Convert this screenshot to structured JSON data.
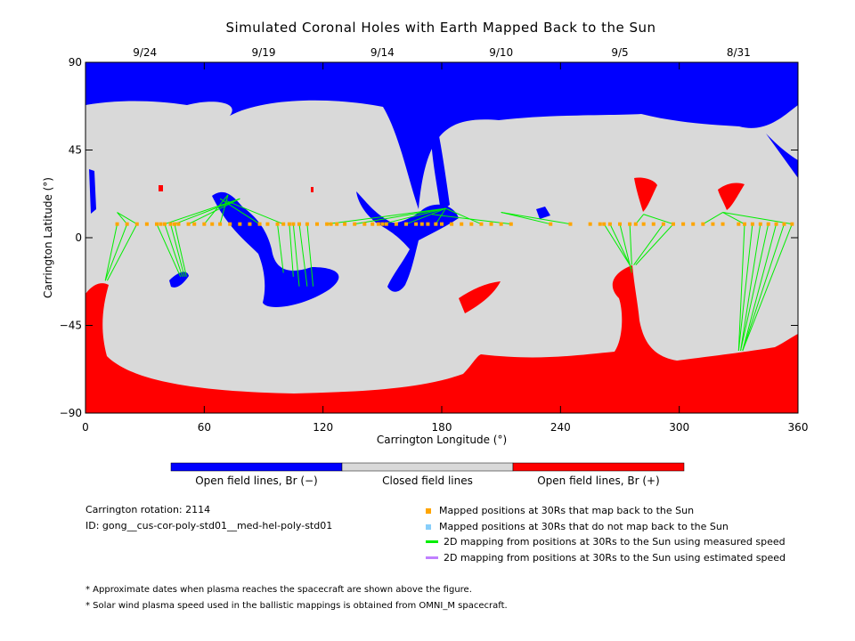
{
  "chart_data": {
    "type": "map",
    "title": "Simulated Coronal Holes with Earth Mapped Back to the Sun",
    "xlabel": "Carrington Longitude (°)",
    "ylabel": "Carrington Latitude (°)",
    "xlim": [
      0,
      360
    ],
    "ylim": [
      -90,
      90
    ],
    "x_ticks": [
      "0",
      "60",
      "120",
      "180",
      "240",
      "300",
      "360"
    ],
    "y_ticks": [
      "90",
      "45",
      "0",
      "−45",
      "−90"
    ],
    "top_dates": [
      {
        "label": "9/24",
        "lon": 30
      },
      {
        "label": "9/19",
        "lon": 90
      },
      {
        "label": "9/14",
        "lon": 150
      },
      {
        "label": "9/10",
        "lon": 210
      },
      {
        "label": "9/5",
        "lon": 270
      },
      {
        "label": "8/31",
        "lon": 330
      }
    ],
    "colorbar": [
      {
        "label": "Open field lines, Br (−)",
        "color": "#0000ff"
      },
      {
        "label": "Closed field lines",
        "color": "#d9d9d9"
      },
      {
        "label": "Open field lines, Br (+)",
        "color": "#ff0000"
      }
    ],
    "mapped_lat": 7,
    "mapped_lons": [
      16,
      21,
      26,
      31,
      36,
      38,
      40,
      43,
      45,
      47,
      52,
      55,
      60,
      64,
      68,
      73,
      78,
      83,
      88,
      92,
      97,
      100,
      103,
      105,
      108,
      112,
      117,
      122,
      124,
      127,
      131,
      136,
      141,
      145,
      148,
      150,
      152,
      157,
      162,
      167,
      170,
      173,
      177,
      180,
      185,
      190,
      195,
      200,
      205,
      210,
      215,
      235,
      245,
      255,
      260,
      262,
      265,
      270,
      275,
      278,
      282,
      287,
      292,
      297,
      302,
      307,
      312,
      317,
      322,
      330,
      333,
      337,
      341,
      345,
      349,
      353,
      357
    ],
    "green_lines": [
      [
        21,
        7,
        16,
        13
      ],
      [
        26,
        7,
        16,
        13
      ],
      [
        40,
        7,
        78,
        20
      ],
      [
        45,
        7,
        78,
        20
      ],
      [
        52,
        7,
        78,
        20
      ],
      [
        60,
        7,
        72,
        22
      ],
      [
        68,
        7,
        72,
        22
      ],
      [
        88,
        7,
        68,
        20
      ],
      [
        100,
        7,
        71,
        19
      ],
      [
        122,
        7,
        182,
        15
      ],
      [
        136,
        7,
        182,
        15
      ],
      [
        150,
        7,
        182,
        15
      ],
      [
        162,
        7,
        182,
        15
      ],
      [
        177,
        7,
        182,
        15
      ],
      [
        200,
        7,
        182,
        15
      ],
      [
        215,
        7,
        175,
        12
      ],
      [
        235,
        7,
        210,
        13
      ],
      [
        245,
        7,
        210,
        13
      ],
      [
        278,
        7,
        282,
        12
      ],
      [
        297,
        7,
        282,
        12
      ],
      [
        312,
        7,
        322,
        13
      ],
      [
        333,
        7,
        322,
        13
      ],
      [
        357,
        7,
        322,
        13
      ],
      [
        16,
        7,
        10,
        -22
      ],
      [
        21,
        7,
        10,
        -22
      ],
      [
        26,
        7,
        11,
        -22
      ],
      [
        36,
        7,
        48,
        -20
      ],
      [
        40,
        7,
        49,
        -20
      ],
      [
        43,
        7,
        50,
        -20
      ],
      [
        45,
        7,
        51,
        -20
      ],
      [
        97,
        7,
        100,
        -18
      ],
      [
        103,
        7,
        105,
        -20
      ],
      [
        105,
        7,
        108,
        -25
      ],
      [
        108,
        7,
        112,
        -25
      ],
      [
        112,
        7,
        115,
        -25
      ],
      [
        262,
        7,
        275,
        -14
      ],
      [
        265,
        7,
        276,
        -16
      ],
      [
        270,
        7,
        276,
        -18
      ],
      [
        275,
        7,
        276,
        -14
      ],
      [
        292,
        7,
        277,
        -14
      ],
      [
        297,
        7,
        278,
        -14
      ],
      [
        333,
        7,
        330,
        -58
      ],
      [
        337,
        7,
        330,
        -58
      ],
      [
        341,
        7,
        331,
        -58
      ],
      [
        345,
        7,
        331,
        -58
      ],
      [
        349,
        7,
        332,
        -58
      ],
      [
        353,
        7,
        332,
        -58
      ],
      [
        357,
        7,
        332,
        -58
      ]
    ]
  },
  "carrington_label": "Carrington rotation: 2114",
  "id_label": "ID: gong__cus-cor-poly-std01__med-hel-poly-std01",
  "legend": [
    {
      "label": "Mapped positions at 30Rs that map back to the Sun",
      "color": "#ffa500",
      "kind": "square"
    },
    {
      "label": "Mapped positions at 30Rs that do not map back to the Sun",
      "color": "#87cefa",
      "kind": "square"
    },
    {
      "label": "2D mapping from positions at 30Rs to the Sun using measured speed",
      "color": "#00ee00",
      "kind": "line"
    },
    {
      "label": "2D mapping from positions at 30Rs to the Sun using estimated speed",
      "color": "#c080ff",
      "kind": "line"
    }
  ],
  "footnotes": [
    "* Approximate dates when plasma reaches the spacecraft are shown above the figure.",
    "* Solar wind plasma speed used in the ballistic mappings is obtained from OMNI_M spacecraft."
  ]
}
